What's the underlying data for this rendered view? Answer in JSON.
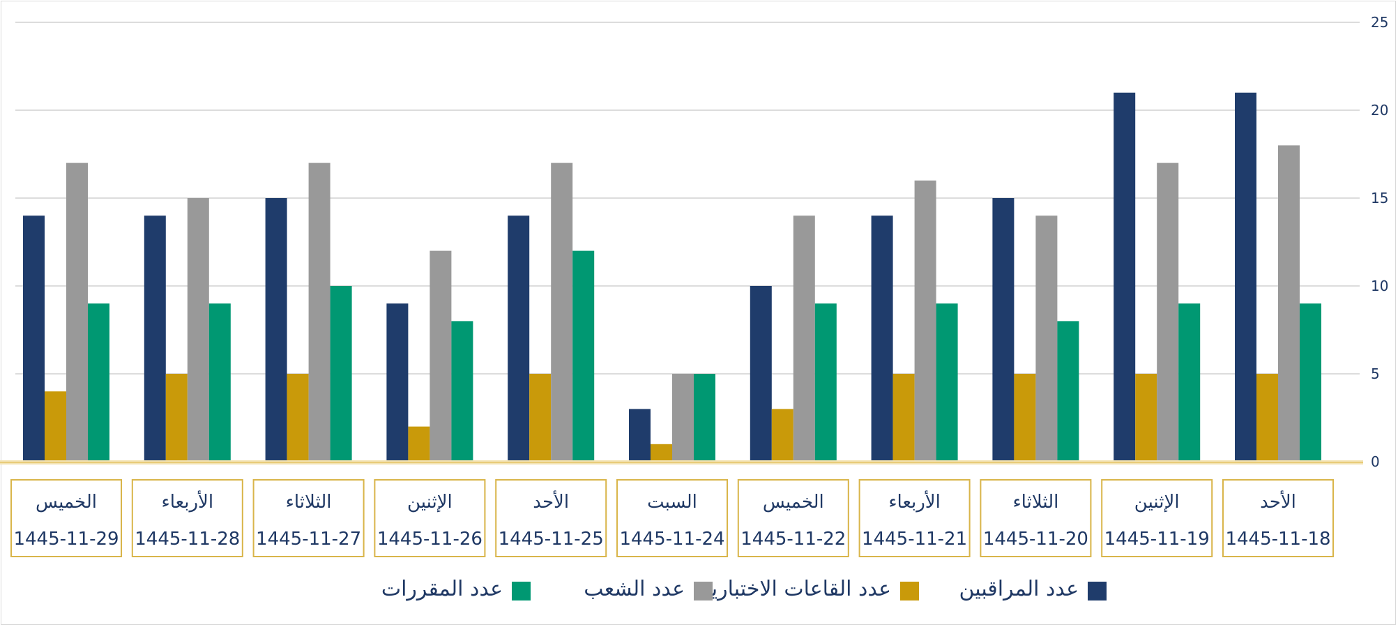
{
  "chart_data": {
    "type": "bar",
    "direction": "rtl",
    "y_axis_side": "right",
    "ylim": [
      0,
      25
    ],
    "yticks": [
      "0",
      "5",
      "10",
      "15",
      "20",
      "25"
    ],
    "grid": true,
    "legend_position": "bottom",
    "categories": [
      {
        "day": "الأحد",
        "date": "1445-11-18"
      },
      {
        "day": "الإثنين",
        "date": "1445-11-19"
      },
      {
        "day": "الثلاثاء",
        "date": "1445-11-20"
      },
      {
        "day": "الأربعاء",
        "date": "1445-11-21"
      },
      {
        "day": "الخميس",
        "date": "1445-11-22"
      },
      {
        "day": "السبت",
        "date": "1445-11-24"
      },
      {
        "day": "الأحد",
        "date": "1445-11-25"
      },
      {
        "day": "الإثنين",
        "date": "1445-11-26"
      },
      {
        "day": "الثلاثاء",
        "date": "1445-11-27"
      },
      {
        "day": "الأربعاء",
        "date": "1445-11-28"
      },
      {
        "day": "الخميس",
        "date": "1445-11-29"
      }
    ],
    "series": [
      {
        "name": "عدد المراقبين",
        "color": "#1f3c6b",
        "values": [
          21,
          21,
          15,
          14,
          10,
          3,
          14,
          9,
          15,
          14,
          14
        ]
      },
      {
        "name": "عدد القاعات الاختبارية",
        "color": "#c99a0a",
        "values": [
          5,
          5,
          5,
          5,
          3,
          1,
          5,
          2,
          5,
          5,
          4
        ]
      },
      {
        "name": "عدد الشعب",
        "color": "#999999",
        "values": [
          18,
          17,
          14,
          16,
          14,
          5,
          17,
          12,
          17,
          15,
          17
        ]
      },
      {
        "name": "عدد المقررات",
        "color": "#009872",
        "values": [
          9,
          9,
          8,
          9,
          9,
          5,
          12,
          8,
          10,
          9,
          9
        ]
      }
    ]
  }
}
